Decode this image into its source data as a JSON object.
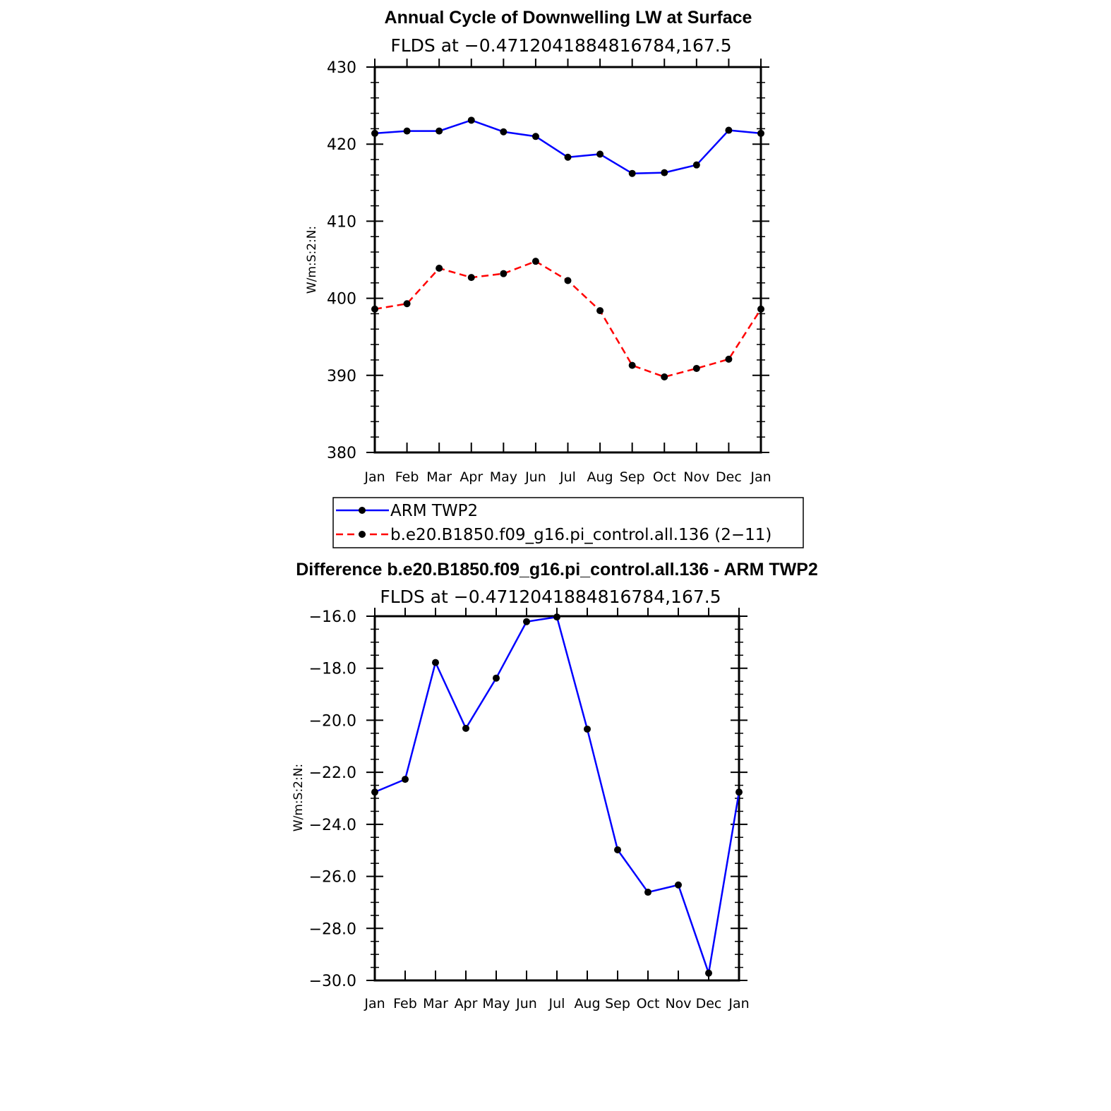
{
  "chart_data": [
    {
      "type": "line",
      "title": "Annual Cycle of Downwelling LW at Surface",
      "subtitle": "FLDS at −0.4712041884816784,167.5",
      "ylabel": "W/m:S:2:N:",
      "ylim": [
        380,
        430
      ],
      "yticks": [
        380,
        390,
        400,
        410,
        420,
        430
      ],
      "ytick_labels": [
        "380",
        "390",
        "400",
        "410",
        "420",
        "430"
      ],
      "categories": [
        "Jan",
        "Feb",
        "Mar",
        "Apr",
        "May",
        "Jun",
        "Jul",
        "Aug",
        "Sep",
        "Oct",
        "Nov",
        "Dec",
        "Jan"
      ],
      "series": [
        {
          "name": "ARM TWP2",
          "color": "#0000ff",
          "dash": "solid",
          "values": [
            421.4,
            421.7,
            421.7,
            423.1,
            421.6,
            421.0,
            418.3,
            418.7,
            416.2,
            416.3,
            417.3,
            421.8,
            421.4
          ]
        },
        {
          "name": "b.e20.B1850.f09_g16.pi_control.all.136 (2−11)",
          "color": "#ff0000",
          "dash": "dashed",
          "values": [
            398.6,
            399.3,
            403.9,
            402.7,
            403.2,
            404.8,
            402.3,
            398.4,
            391.3,
            389.8,
            390.9,
            392.1,
            398.6
          ]
        }
      ],
      "legend": "below"
    },
    {
      "type": "line",
      "title": "Difference b.e20.B1850.f09_g16.pi_control.all.136 - ARM TWP2",
      "subtitle": "FLDS at −0.4712041884816784,167.5",
      "ylabel": "W/m:S:2:N:",
      "ylim": [
        -30.0,
        -16.0
      ],
      "yticks": [
        -30.0,
        -28.0,
        -26.0,
        -24.0,
        -22.0,
        -20.0,
        -18.0,
        -16.0
      ],
      "ytick_labels": [
        "−30.0",
        "−28.0",
        "−26.0",
        "−24.0",
        "−22.0",
        "−20.0",
        "−18.0",
        "−16.0"
      ],
      "categories": [
        "Jan",
        "Feb",
        "Mar",
        "Apr",
        "May",
        "Jun",
        "Jul",
        "Aug",
        "Sep",
        "Oct",
        "Nov",
        "Dec",
        "Jan"
      ],
      "series": [
        {
          "name": "Difference",
          "color": "#0000ff",
          "dash": "solid",
          "values": [
            -22.76,
            -22.27,
            -17.78,
            -20.31,
            -18.38,
            -16.21,
            -16.03,
            -20.34,
            -24.98,
            -26.61,
            -26.33,
            -29.72,
            -22.76
          ]
        }
      ]
    }
  ]
}
